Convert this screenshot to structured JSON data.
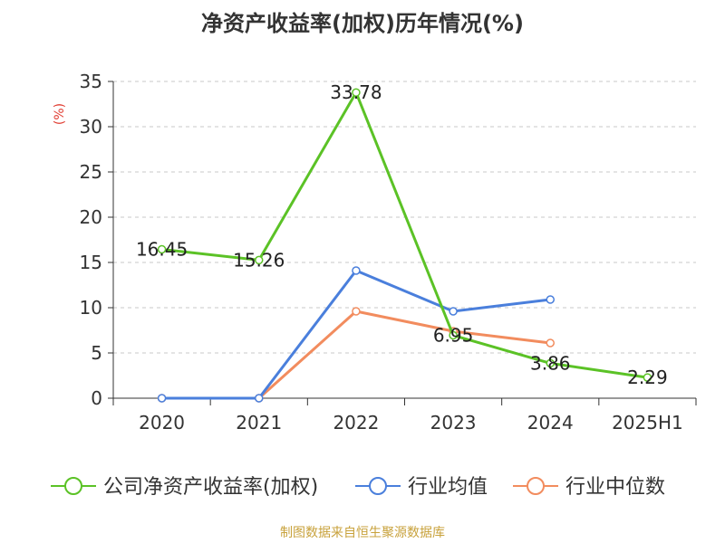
{
  "chart_data": {
    "type": "line",
    "title": "净资产收益率(加权)历年情况(%)",
    "ylabel": "(%)",
    "xlabel": "",
    "categories": [
      "2020",
      "2021",
      "2022",
      "2023",
      "2024",
      "2025H1"
    ],
    "ylim": [
      0,
      35
    ],
    "yticks": [
      0,
      5,
      10,
      15,
      20,
      25,
      30,
      35
    ],
    "grid": "horizontal dashed",
    "legend_position": "bottom",
    "series": [
      {
        "name": "公司净资产收益率(加权)",
        "color": "#5bc226",
        "values": [
          16.45,
          15.26,
          33.78,
          6.95,
          3.86,
          2.29
        ],
        "labels": [
          "16.45",
          "15.26",
          "33.78",
          "6.95",
          "3.86",
          "2.29"
        ]
      },
      {
        "name": "行业均值",
        "color": "#4a7fdc",
        "values": [
          0,
          0,
          14.1,
          9.6,
          10.9,
          null
        ]
      },
      {
        "name": "行业中位数",
        "color": "#f28c5e",
        "values": [
          0,
          0,
          9.6,
          7.4,
          6.1,
          null
        ]
      }
    ]
  },
  "source": "制图数据来自恒生聚源数据库"
}
